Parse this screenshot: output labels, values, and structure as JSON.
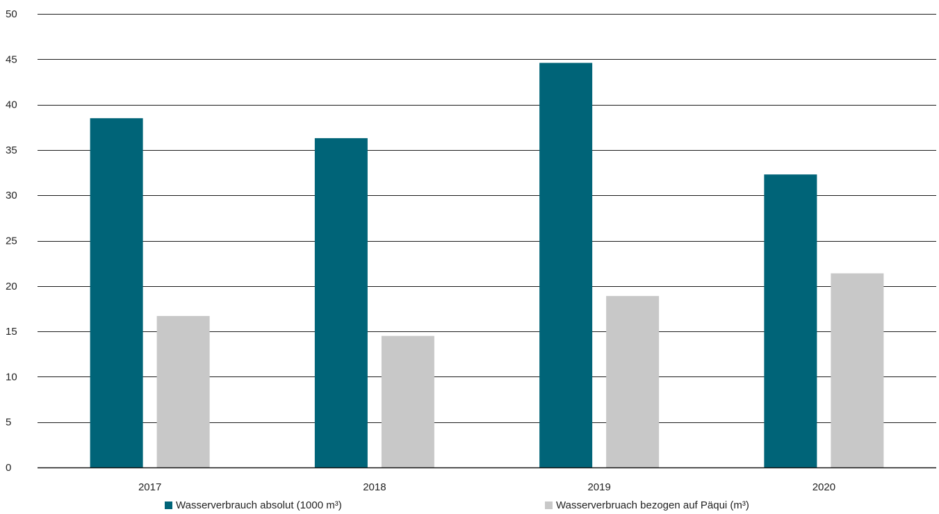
{
  "chart_data": {
    "type": "bar",
    "categories": [
      "2017",
      "2018",
      "2019",
      "2020"
    ],
    "series": [
      {
        "name": "Wasserverbrauch absolut (1000 m³)",
        "values": [
          38.5,
          36.3,
          44.6,
          32.3
        ],
        "color": "#006478"
      },
      {
        "name": "Wasserverbruach bezogen auf Päqui (m³)",
        "values": [
          16.7,
          14.5,
          18.9,
          21.4
        ],
        "color": "#c8c8c8"
      }
    ],
    "ylim": [
      0,
      50
    ],
    "yticks": [
      0,
      5,
      10,
      15,
      20,
      25,
      30,
      35,
      40,
      45,
      50
    ],
    "grid": true,
    "legend_position": "bottom"
  }
}
